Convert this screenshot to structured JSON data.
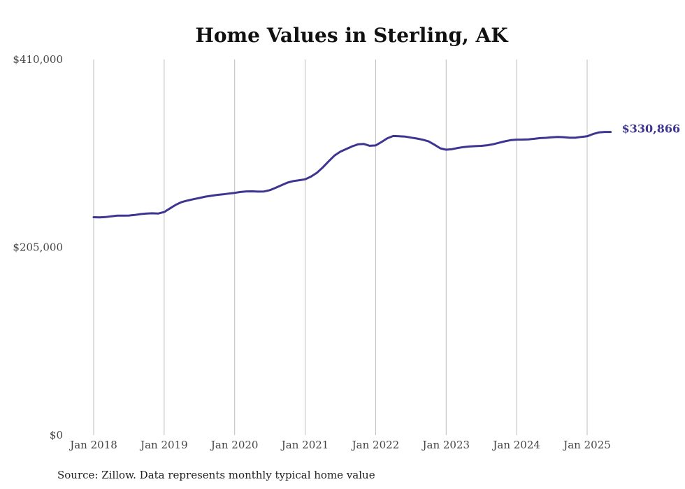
{
  "chart_data": {
    "type": "line",
    "title": "Home Values in Sterling, AK",
    "xlabel": "",
    "ylabel": "",
    "ylim": [
      0,
      410000
    ],
    "yticks": [
      {
        "value": 0,
        "label": "$0"
      },
      {
        "value": 205000,
        "label": "$205,000"
      },
      {
        "value": 410000,
        "label": "$410,000"
      }
    ],
    "xticks": [
      {
        "value": "2018-01",
        "label": "Jan 2018"
      },
      {
        "value": "2019-01",
        "label": "Jan 2019"
      },
      {
        "value": "2020-01",
        "label": "Jan 2020"
      },
      {
        "value": "2021-01",
        "label": "Jan 2021"
      },
      {
        "value": "2022-01",
        "label": "Jan 2022"
      },
      {
        "value": "2023-01",
        "label": "Jan 2023"
      },
      {
        "value": "2024-01",
        "label": "Jan 2024"
      },
      {
        "value": "2025-01",
        "label": "Jan 2025"
      }
    ],
    "xlim": [
      "2018-01",
      "2025-05"
    ],
    "grid": {
      "vertical": true,
      "horizontal": false
    },
    "series": [
      {
        "color": "#3d3590",
        "x": [
          "2018-01",
          "2018-02",
          "2018-03",
          "2018-04",
          "2018-05",
          "2018-06",
          "2018-07",
          "2018-08",
          "2018-09",
          "2018-10",
          "2018-11",
          "2018-12",
          "2019-01",
          "2019-02",
          "2019-03",
          "2019-04",
          "2019-05",
          "2019-06",
          "2019-07",
          "2019-08",
          "2019-09",
          "2019-10",
          "2019-11",
          "2019-12",
          "2020-01",
          "2020-02",
          "2020-03",
          "2020-04",
          "2020-05",
          "2020-06",
          "2020-07",
          "2020-08",
          "2020-09",
          "2020-10",
          "2020-11",
          "2020-12",
          "2021-01",
          "2021-02",
          "2021-03",
          "2021-04",
          "2021-05",
          "2021-06",
          "2021-07",
          "2021-08",
          "2021-09",
          "2021-10",
          "2021-11",
          "2021-12",
          "2022-01",
          "2022-02",
          "2022-03",
          "2022-04",
          "2022-05",
          "2022-06",
          "2022-07",
          "2022-08",
          "2022-09",
          "2022-10",
          "2022-11",
          "2022-12",
          "2023-01",
          "2023-02",
          "2023-03",
          "2023-04",
          "2023-05",
          "2023-06",
          "2023-07",
          "2023-08",
          "2023-09",
          "2023-10",
          "2023-11",
          "2023-12",
          "2024-01",
          "2024-02",
          "2024-03",
          "2024-04",
          "2024-05",
          "2024-06",
          "2024-07",
          "2024-08",
          "2024-09",
          "2024-10",
          "2024-11",
          "2024-12",
          "2025-01",
          "2025-02",
          "2025-03",
          "2025-04",
          "2025-05"
        ],
        "y": [
          237800,
          237600,
          238000,
          238800,
          239500,
          239600,
          239700,
          240300,
          241300,
          241900,
          242100,
          241900,
          243500,
          247500,
          251500,
          254400,
          256100,
          257500,
          258800,
          260300,
          261200,
          262200,
          262800,
          263600,
          264400,
          265400,
          266000,
          266100,
          265800,
          265900,
          267400,
          270000,
          272900,
          275600,
          277300,
          278200,
          279200,
          282200,
          286300,
          292200,
          298800,
          305200,
          309400,
          312300,
          315200,
          317400,
          317800,
          315800,
          316200,
          319900,
          324000,
          326500,
          326200,
          325900,
          324700,
          323700,
          322400,
          320600,
          317000,
          313000,
          311500,
          312100,
          313400,
          314400,
          315000,
          315400,
          315700,
          316400,
          317500,
          319100,
          320700,
          322000,
          322500,
          322600,
          322800,
          323400,
          324200,
          324500,
          325100,
          325400,
          325200,
          324600,
          324600,
          325500,
          326200,
          328600,
          330400,
          330900,
          330866
        ],
        "end_label": "$330,866"
      }
    ]
  },
  "source": "Source: Zillow. Data represents monthly typical home value"
}
